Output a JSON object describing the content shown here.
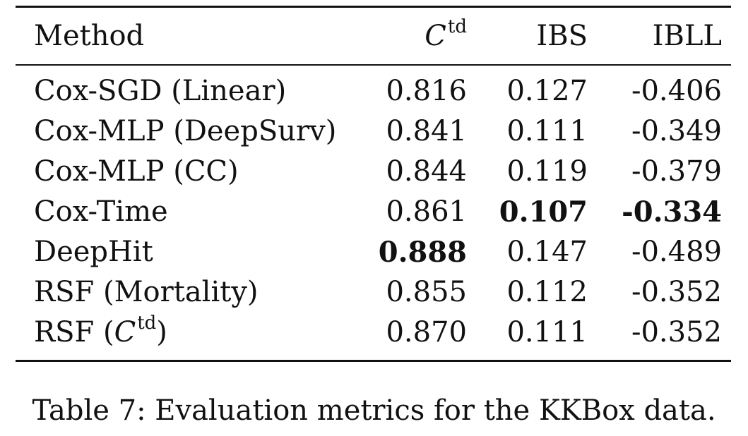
{
  "table": {
    "headers": {
      "method": "Method",
      "ctd_base": "C",
      "ctd_sup": "td",
      "ibs": "IBS",
      "ibll": "IBLL"
    },
    "rows": [
      {
        "method": "Cox-SGD (Linear)",
        "ctd": "0.816",
        "ibs": "0.127",
        "ibll": "-0.406"
      },
      {
        "method": "Cox-MLP (DeepSurv)",
        "ctd": "0.841",
        "ibs": "0.111",
        "ibll": "-0.349"
      },
      {
        "method": "Cox-MLP (CC)",
        "ctd": "0.844",
        "ibs": "0.119",
        "ibll": "-0.379"
      },
      {
        "method": "Cox-Time",
        "ctd": "0.861",
        "ibs": "0.107",
        "ibll": "-0.334"
      },
      {
        "method": "DeepHit",
        "ctd": "0.888",
        "ibs": "0.147",
        "ibll": "-0.489"
      },
      {
        "method": "RSF (Mortality)",
        "ctd": "0.855",
        "ibs": "0.112",
        "ibll": "-0.352"
      },
      {
        "method_prefix": "RSF (",
        "method_base": "C",
        "method_sup": "td",
        "method_suffix": ")",
        "ctd": "0.870",
        "ibs": "0.111",
        "ibll": "-0.352"
      }
    ]
  },
  "caption": "Table 7: Evaluation metrics for the KKBox data."
}
